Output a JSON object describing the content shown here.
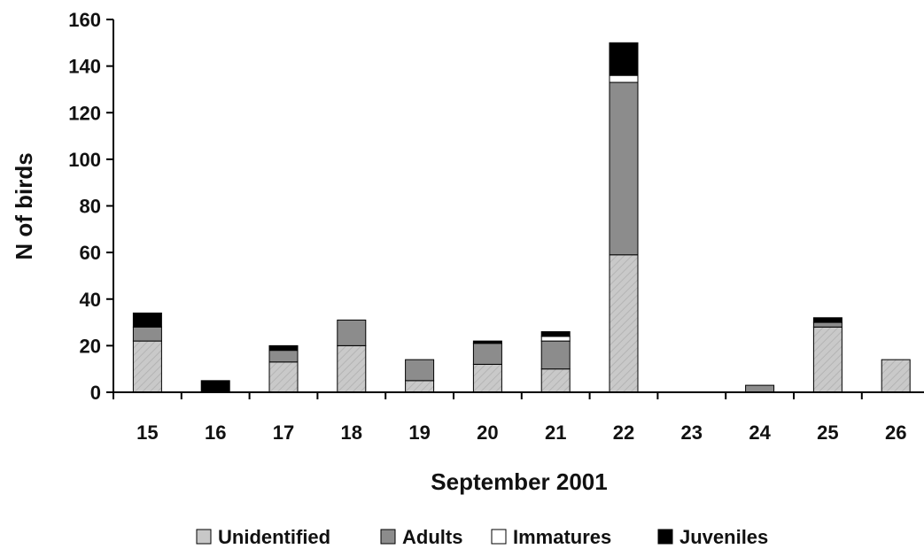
{
  "chart_data": {
    "type": "bar",
    "stacked": true,
    "categories": [
      "15",
      "16",
      "17",
      "18",
      "19",
      "20",
      "21",
      "22",
      "23",
      "24",
      "25",
      "26"
    ],
    "series": [
      {
        "name": "Unidentified",
        "color": "#c8c8c8",
        "values": [
          22,
          0,
          13,
          20,
          5,
          12,
          10,
          59,
          0,
          0,
          28,
          14
        ]
      },
      {
        "name": "Adults",
        "color": "#8c8c8c",
        "values": [
          6,
          0,
          5,
          11,
          9,
          9,
          12,
          74,
          0,
          3,
          2,
          0
        ]
      },
      {
        "name": "Immatures",
        "color": "#ffffff",
        "values": [
          0,
          0,
          0,
          0,
          0,
          0,
          2,
          3,
          0,
          0,
          0,
          0
        ]
      },
      {
        "name": "Juveniles",
        "color": "#000000",
        "values": [
          6,
          5,
          2,
          0,
          0,
          1,
          2,
          14,
          0,
          0,
          2,
          0
        ]
      }
    ],
    "xlabel": "September 2001",
    "ylabel": "N of birds",
    "ylim": [
      0,
      160
    ],
    "yticks": [
      0,
      20,
      40,
      60,
      80,
      100,
      120,
      140,
      160
    ],
    "grid": false,
    "legend_position": "bottom"
  }
}
